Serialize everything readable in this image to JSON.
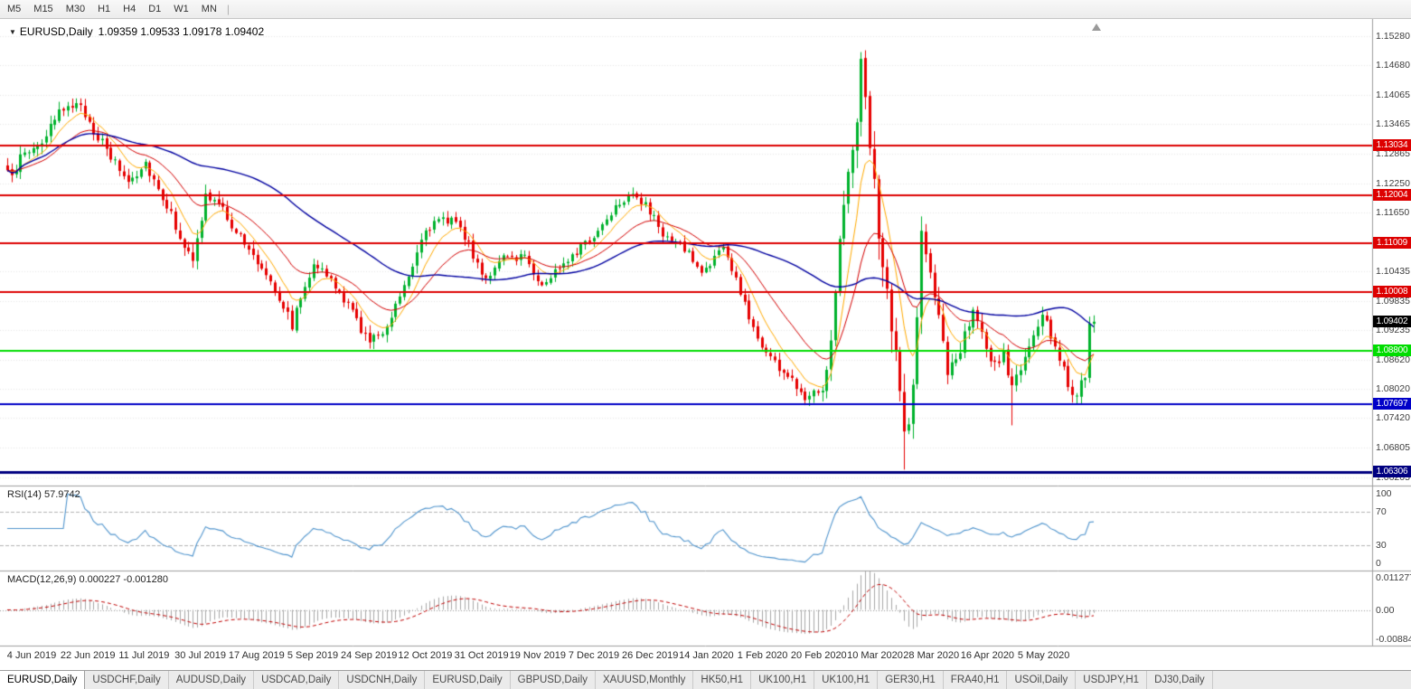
{
  "toolbar": {
    "timeframes": [
      "M5",
      "M15",
      "M30",
      "H1",
      "H4",
      "D1",
      "W1",
      "MN"
    ],
    "separator": "|"
  },
  "main_chart": {
    "title": "EURUSD,Daily",
    "ohlc": "1.09359 1.09533 1.09178 1.09402",
    "open": "1.09359",
    "high": "1.09533",
    "low": "1.09178",
    "close": "1.09402",
    "current_price": "1.09402",
    "price_range": {
      "min": 1.0605,
      "max": 1.1552
    },
    "y_axis_labels": [
      "1.15280",
      "1.14680",
      "1.14065",
      "1.13465",
      "1.12865",
      "1.12250",
      "1.11650",
      "1.10435",
      "1.09835",
      "1.09235",
      "1.08620",
      "1.08020",
      "1.07420",
      "1.06805",
      "1.06205"
    ],
    "hlines": [
      {
        "value": 1.13034,
        "label": "1.13034",
        "color": "#dd0000",
        "width": 2
      },
      {
        "value": 1.12004,
        "label": "1.12004",
        "color": "#dd0000",
        "width": 2
      },
      {
        "value": 1.11009,
        "label": "1.11009",
        "color": "#dd0000",
        "width": 2
      },
      {
        "value": 1.10008,
        "label": "1.10008",
        "color": "#dd0000",
        "width": 2
      },
      {
        "value": 1.088,
        "label": "1.08800",
        "color": "#00dd00",
        "width": 2
      },
      {
        "value": 1.07697,
        "label": "1.07697",
        "color": "#0000c8",
        "width": 2
      },
      {
        "value": 1.06306,
        "label": "1.06306",
        "color": "#000080",
        "width": 3
      }
    ],
    "colors": {
      "bull": "#00b22d",
      "bear": "#e60000",
      "ma_fast": "#ffaa00",
      "ma_mid": "#d40000",
      "ma_slow": "#0000a0",
      "grid": "#e7e7e7"
    }
  },
  "rsi": {
    "label": "RSI(14) 57.9742",
    "value": "57.9742",
    "levels": [
      "100",
      "70",
      "30",
      "0"
    ],
    "line_color": "#4f94cd"
  },
  "macd": {
    "label": "MACD(12,26,9) 0.000227 -0.001280",
    "values": "0.000227 -0.001280",
    "axis": [
      "0.011277",
      "0.00",
      "-0.00884"
    ],
    "hist_color": "#a8a8a8",
    "signal_color": "#c00000"
  },
  "x_axis": {
    "dates": [
      "4 Jun 2019",
      "22 Jun 2019",
      "11 Jul 2019",
      "30 Jul 2019",
      "17 Aug 2019",
      "5 Sep 2019",
      "24 Sep 2019",
      "12 Oct 2019",
      "31 Oct 2019",
      "19 Nov 2019",
      "7 Dec 2019",
      "26 Dec 2019",
      "14 Jan 2020",
      "1 Feb 2020",
      "20 Feb 2020",
      "10 Mar 2020",
      "28 Mar 2020",
      "16 Apr 2020",
      "5 May 2020"
    ]
  },
  "tabs": [
    {
      "label": "EURUSD,Daily",
      "active": true
    },
    {
      "label": "USDCHF,Daily",
      "active": false
    },
    {
      "label": "AUDUSD,Daily",
      "active": false
    },
    {
      "label": "USDCAD,Daily",
      "active": false
    },
    {
      "label": "USDCNH,Daily",
      "active": false
    },
    {
      "label": "EURUSD,Daily",
      "active": false
    },
    {
      "label": "GBPUSD,Daily",
      "active": false
    },
    {
      "label": "XAUUSD,Monthly",
      "active": false
    },
    {
      "label": "HK50,H1",
      "active": false
    },
    {
      "label": "UK100,H1",
      "active": false
    },
    {
      "label": "UK100,H1",
      "active": false
    },
    {
      "label": "GER30,H1",
      "active": false
    },
    {
      "label": "FRA40,H1",
      "active": false
    },
    {
      "label": "USOil,Daily",
      "active": false
    },
    {
      "label": "USDJPY,H1",
      "active": false
    },
    {
      "label": "DJ30,Daily",
      "active": false
    }
  ],
  "chart_data": {
    "type": "candlestick",
    "symbol": "EURUSD",
    "timeframe": "Daily",
    "bars": 253,
    "anchors": [
      [
        0,
        1.124,
        1.0
      ],
      [
        4,
        1.1285,
        1.0
      ],
      [
        9,
        1.132,
        1.0
      ],
      [
        14,
        1.1395,
        1.0
      ],
      [
        18,
        1.1368,
        0.9
      ],
      [
        23,
        1.129,
        0.9
      ],
      [
        28,
        1.123,
        0.9
      ],
      [
        32,
        1.1268,
        0.8
      ],
      [
        37,
        1.118,
        0.8
      ],
      [
        43,
        1.1058,
        1.0
      ],
      [
        46,
        1.12,
        1.1
      ],
      [
        50,
        1.117,
        0.9
      ],
      [
        56,
        1.1085,
        0.9
      ],
      [
        61,
        1.103,
        0.9
      ],
      [
        66,
        1.0935,
        0.9
      ],
      [
        71,
        1.1068,
        0.9
      ],
      [
        76,
        1.101,
        0.8
      ],
      [
        80,
        1.096,
        0.8
      ],
      [
        84,
        1.0895,
        0.9
      ],
      [
        88,
        1.0935,
        0.9
      ],
      [
        93,
        1.104,
        0.9
      ],
      [
        97,
        1.1135,
        0.9
      ],
      [
        104,
        1.1155,
        0.8
      ],
      [
        108,
        1.1075,
        0.8
      ],
      [
        111,
        1.1032,
        0.8
      ],
      [
        115,
        1.1068,
        0.7
      ],
      [
        120,
        1.1078,
        0.7
      ],
      [
        124,
        1.1012,
        0.7
      ],
      [
        129,
        1.1065,
        0.7
      ],
      [
        136,
        1.1115,
        0.7
      ],
      [
        141,
        1.118,
        0.7
      ],
      [
        145,
        1.121,
        0.8
      ],
      [
        149,
        1.1165,
        0.8
      ],
      [
        153,
        1.111,
        0.7
      ],
      [
        157,
        1.1092,
        0.7
      ],
      [
        161,
        1.104,
        0.7
      ],
      [
        166,
        1.1094,
        0.7
      ],
      [
        170,
        1.1,
        0.8
      ],
      [
        174,
        1.0905,
        0.8
      ],
      [
        179,
        1.0845,
        0.8
      ],
      [
        185,
        1.079,
        0.9
      ],
      [
        189,
        1.081,
        1.1
      ],
      [
        191,
        1.089,
        1.5
      ],
      [
        193,
        1.113,
        2.0
      ],
      [
        196,
        1.129,
        2.2
      ],
      [
        198,
        1.1456,
        2.4
      ],
      [
        200,
        1.133,
        2.5
      ],
      [
        202,
        1.11,
        2.5
      ],
      [
        205,
        1.093,
        2.5
      ],
      [
        208,
        1.071,
        2.4
      ],
      [
        210,
        1.08,
        2.2
      ],
      [
        212,
        1.112,
        2.0
      ],
      [
        214,
        1.103,
        1.8
      ],
      [
        216,
        1.096,
        1.6
      ],
      [
        218,
        1.0815,
        1.4
      ],
      [
        221,
        1.089,
        1.3
      ],
      [
        224,
        1.0975,
        1.2
      ],
      [
        228,
        1.0845,
        1.1
      ],
      [
        231,
        1.087,
        1.0
      ],
      [
        233,
        1.0805,
        1.1
      ],
      [
        236,
        1.0865,
        1.0
      ],
      [
        240,
        1.095,
        1.0
      ],
      [
        243,
        1.0895,
        1.0
      ],
      [
        247,
        1.0788,
        1.0
      ],
      [
        250,
        1.0818,
        0.9
      ],
      [
        251,
        1.0925,
        0.9
      ],
      [
        252,
        1.09402,
        0.8
      ]
    ],
    "overrides": {
      "198": {
        "h": 1.1495
      },
      "208": {
        "l": 1.0636
      },
      "233": {
        "l": 1.0727
      },
      "252": {
        "o": 1.09359,
        "h": 1.09533,
        "l": 1.09178,
        "c": 1.09402
      }
    },
    "key_levels": [
      1.13034,
      1.12004,
      1.11009,
      1.10008,
      1.088,
      1.07697,
      1.06306
    ],
    "last_bar": {
      "open": 1.09359,
      "high": 1.09533,
      "low": 1.09178,
      "close": 1.09402
    }
  }
}
